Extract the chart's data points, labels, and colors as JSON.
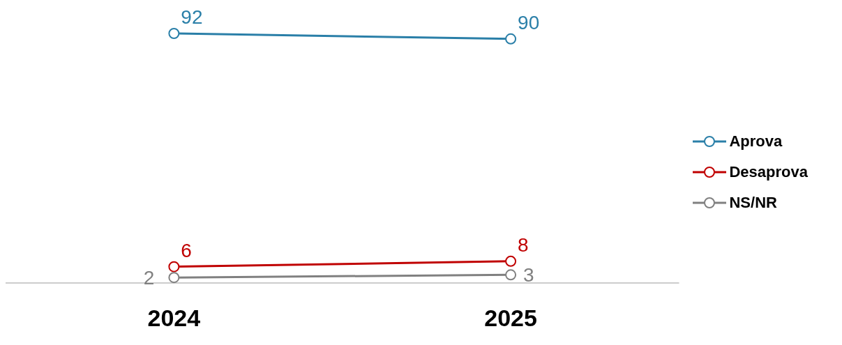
{
  "chart_data": {
    "type": "line",
    "categories": [
      "2024",
      "2025"
    ],
    "series": [
      {
        "name": "Aprova",
        "color": "#2a7fa8",
        "values": [
          92,
          90
        ]
      },
      {
        "name": "Desaprova",
        "color": "#c00000",
        "values": [
          6,
          8
        ]
      },
      {
        "name": "NS/NR",
        "color": "#808080",
        "values": [
          2,
          3
        ]
      }
    ],
    "data_labels": true,
    "marker": "circle",
    "legend": "right",
    "grid": false
  }
}
